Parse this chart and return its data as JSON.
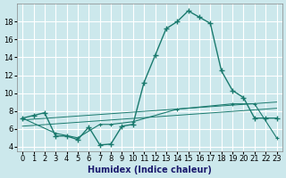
{
  "xlabel": "Humidex (Indice chaleur)",
  "bg_color": "#cce8ec",
  "grid_color": "#ffffff",
  "line_color": "#1a7a6e",
  "series1_x": [
    0,
    1,
    2,
    3,
    4,
    5,
    6,
    7,
    8,
    9,
    10,
    11,
    12,
    13,
    14,
    15,
    16,
    17,
    18,
    19,
    20,
    21,
    22,
    23
  ],
  "series1_y": [
    7.2,
    7.5,
    7.8,
    5.2,
    5.2,
    4.8,
    6.2,
    4.2,
    4.3,
    6.3,
    6.5,
    11.2,
    14.2,
    17.2,
    18.0,
    19.2,
    18.5,
    17.8,
    12.5,
    10.3,
    9.5,
    7.2,
    7.2,
    7.2
  ],
  "series2_x": [
    0,
    3,
    5,
    7,
    8,
    10,
    14,
    19,
    21,
    23
  ],
  "series2_y": [
    7.2,
    5.5,
    5.0,
    6.5,
    6.5,
    6.8,
    8.2,
    8.8,
    8.8,
    5.0
  ],
  "series3_x": [
    0,
    23
  ],
  "series3_y": [
    7.0,
    9.0
  ],
  "series4_x": [
    0,
    23
  ],
  "series4_y": [
    6.3,
    8.3
  ],
  "ylim": [
    3.5,
    20.0
  ],
  "xlim": [
    -0.5,
    23.5
  ],
  "yticks": [
    4,
    6,
    8,
    10,
    12,
    14,
    16,
    18
  ],
  "xticks": [
    0,
    1,
    2,
    3,
    4,
    5,
    6,
    7,
    8,
    9,
    10,
    11,
    12,
    13,
    14,
    15,
    16,
    17,
    18,
    19,
    20,
    21,
    22,
    23
  ]
}
